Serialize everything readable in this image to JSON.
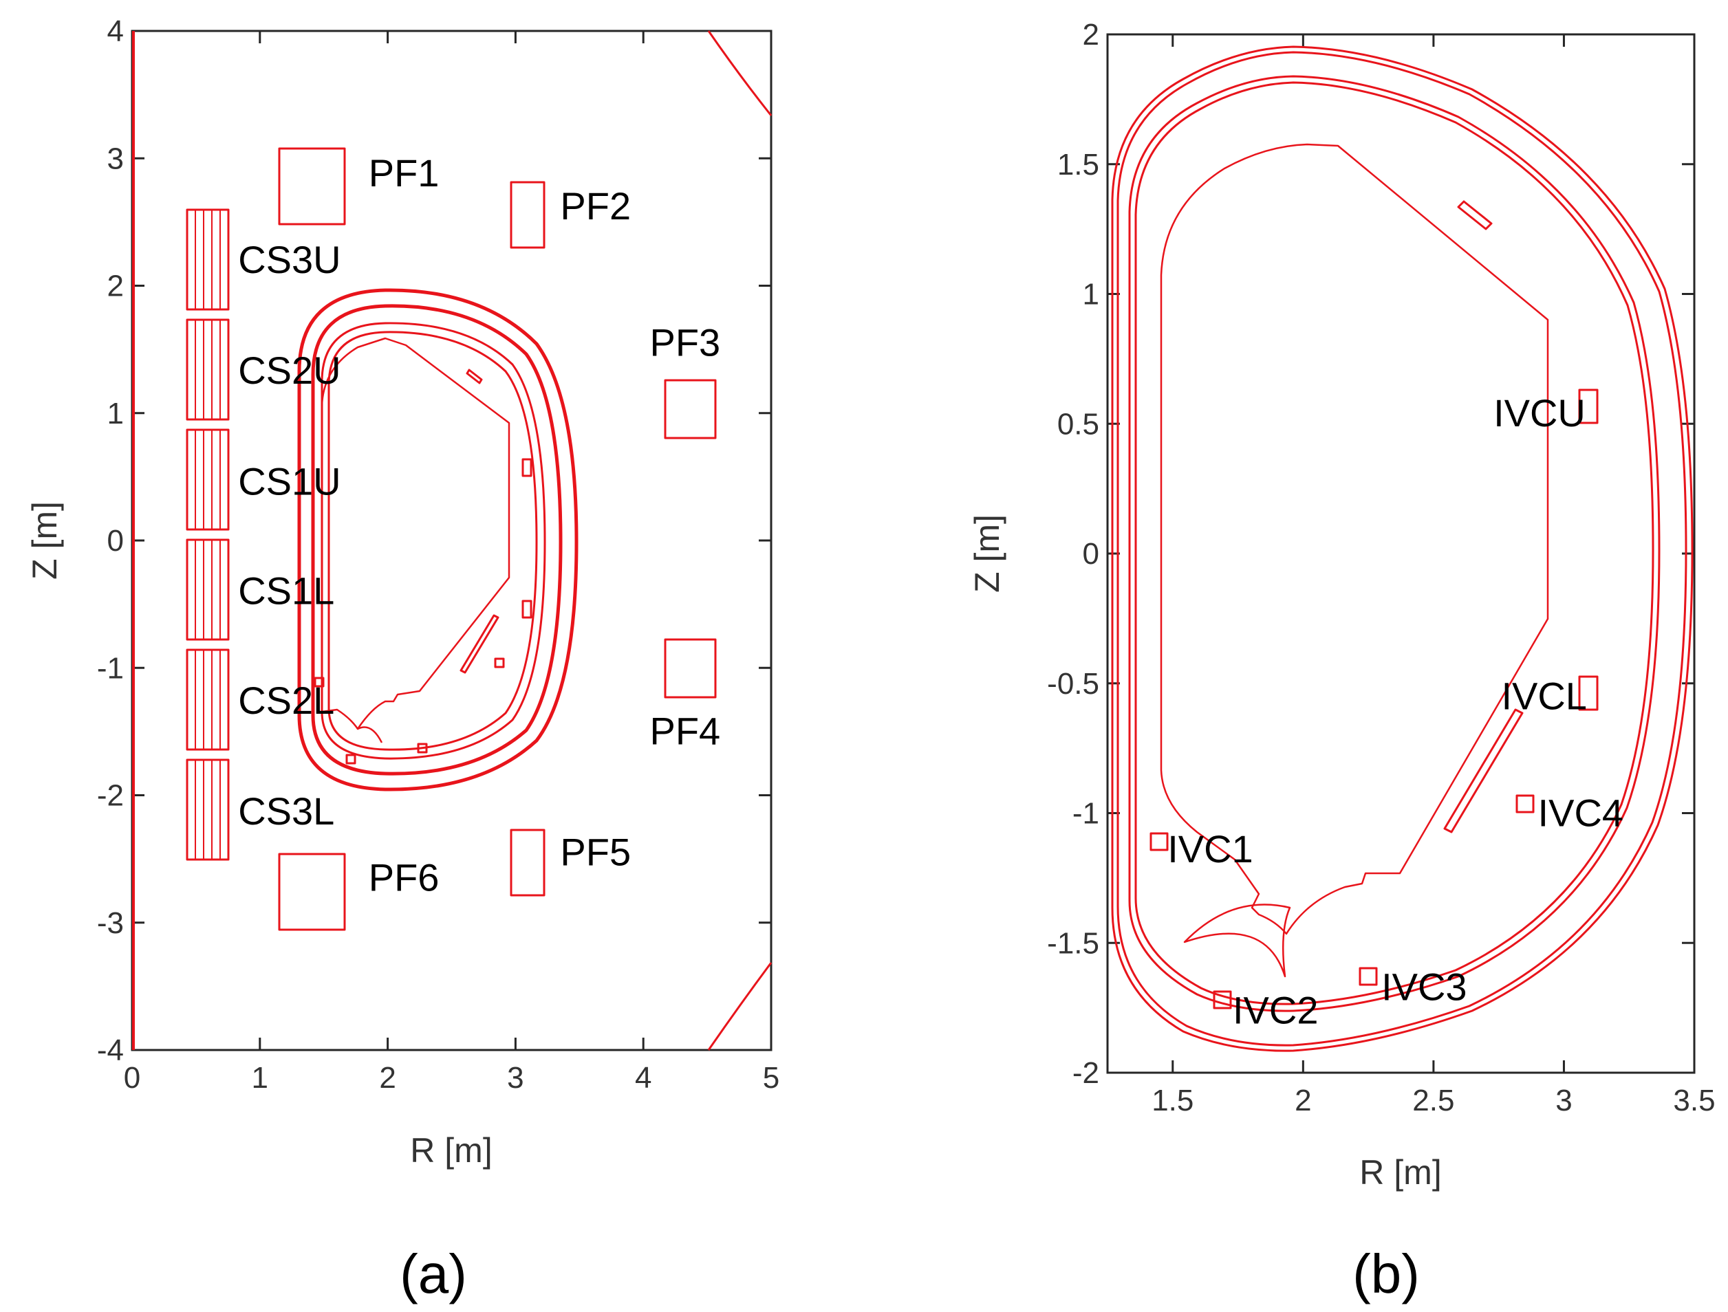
{
  "colors": {
    "geometry": "#e8141b",
    "axes": "#262626",
    "text": "#000000"
  },
  "panels": [
    {
      "caption": "(a)",
      "xlabel": "R [m]",
      "ylabel": "Z [m]",
      "xlim": [
        0,
        5
      ],
      "ylim": [
        -4,
        4
      ],
      "xticks": [
        "0",
        "1",
        "2",
        "3",
        "4",
        "5"
      ],
      "yticks": [
        "-4",
        "-3",
        "-2",
        "-1",
        "0",
        "1",
        "2",
        "3",
        "4"
      ],
      "coil_labels": [
        {
          "text": "PF1",
          "R": 1.85,
          "Z": 2.78
        },
        {
          "text": "PF2",
          "R": 3.35,
          "Z": 2.52
        },
        {
          "text": "PF3",
          "R": 4.05,
          "Z": 1.45
        },
        {
          "text": "PF4",
          "R": 4.05,
          "Z": -1.6
        },
        {
          "text": "PF5",
          "R": 3.35,
          "Z": -2.55
        },
        {
          "text": "PF6",
          "R": 1.85,
          "Z": -2.75
        },
        {
          "text": "CS3U",
          "R": 0.83,
          "Z": 2.1
        },
        {
          "text": "CS2U",
          "R": 0.83,
          "Z": 1.23
        },
        {
          "text": "CS1U",
          "R": 0.83,
          "Z": 0.36
        },
        {
          "text": "CS1L",
          "R": 0.83,
          "Z": -0.5
        },
        {
          "text": "CS2L",
          "R": 0.83,
          "Z": -1.36
        },
        {
          "text": "CS3L",
          "R": 0.83,
          "Z": -2.23
        }
      ]
    },
    {
      "caption": "(b)",
      "xlabel": "R [m]",
      "ylabel": "Z [m]",
      "xlim": [
        1.25,
        3.5
      ],
      "ylim": [
        -2,
        2
      ],
      "xticks": [
        "1.5",
        "2",
        "2.5",
        "3",
        "3.5"
      ],
      "yticks": [
        "-2",
        "-1.5",
        "-1",
        "-0.5",
        "0",
        "0.5",
        "1",
        "1.5",
        "2"
      ],
      "coil_labels": [
        {
          "text": "IVCU",
          "R": 2.73,
          "Z": 0.49
        },
        {
          "text": "IVCL",
          "R": 2.76,
          "Z": -0.6
        },
        {
          "text": "IVC4",
          "R": 2.9,
          "Z": -1.05
        },
        {
          "text": "IVC1",
          "R": 1.48,
          "Z": -1.19
        },
        {
          "text": "IVC2",
          "R": 1.73,
          "Z": -1.81
        },
        {
          "text": "IVC3",
          "R": 2.3,
          "Z": -1.72
        }
      ]
    }
  ]
}
